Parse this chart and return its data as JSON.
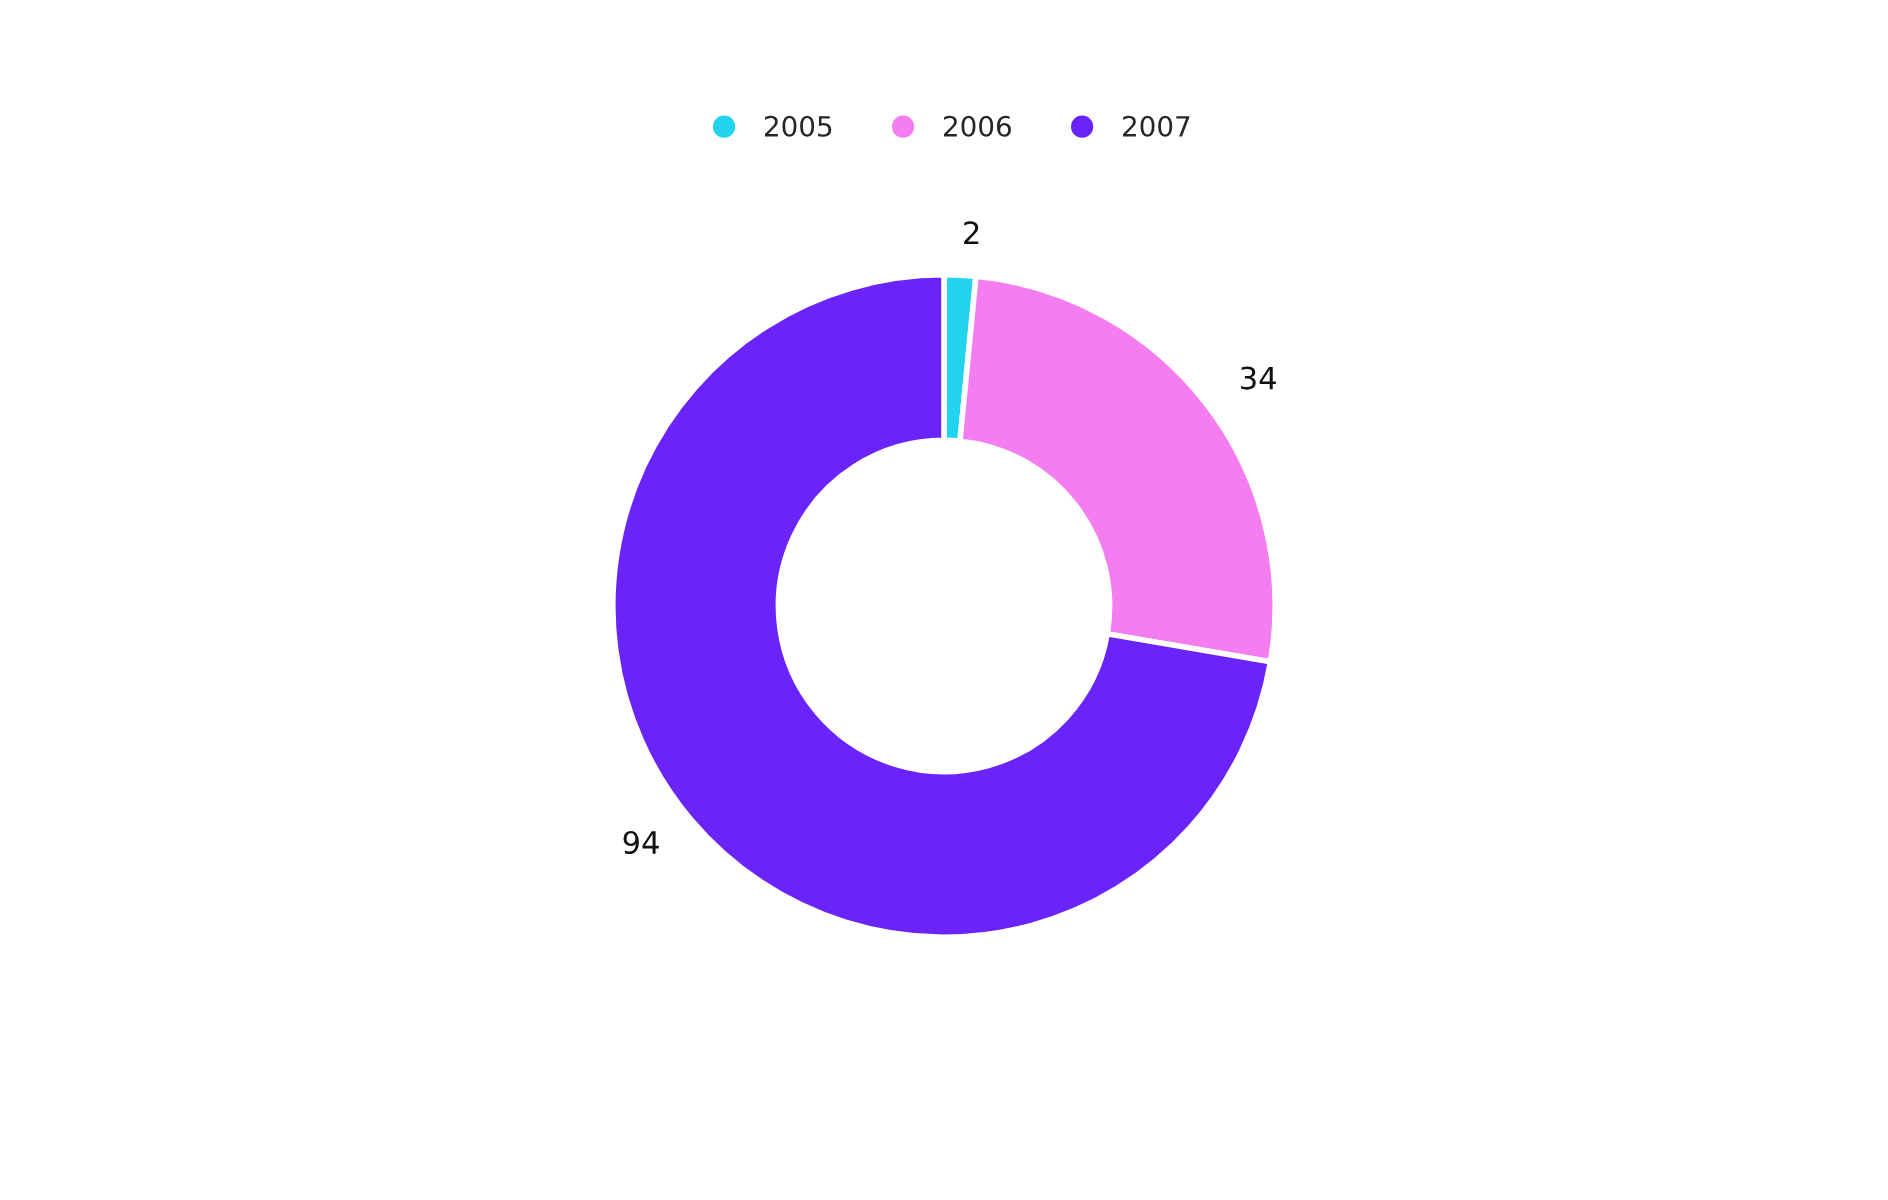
{
  "chart_data": {
    "type": "donut",
    "categories": [
      "2005",
      "2006",
      "2007"
    ],
    "values": [
      2,
      34,
      94
    ],
    "colors": [
      "#22d3ee",
      "#f47ef0",
      "#6a24fa"
    ],
    "data_labels": true,
    "legend": "top"
  }
}
